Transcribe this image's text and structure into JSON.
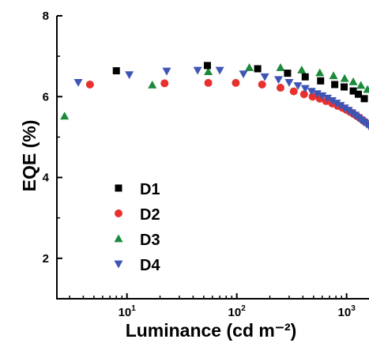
{
  "chart_data": {
    "type": "scatter",
    "title": "",
    "xlabel": "Luminance (cd m⁻²)",
    "ylabel": "EQE (%)",
    "xscale": "log",
    "xlim": [
      2.3,
      1600
    ],
    "ylim": [
      1,
      8
    ],
    "x_ticks": [
      {
        "value": 10,
        "label_base": "10",
        "label_exp": "1"
      },
      {
        "value": 100,
        "label_base": "10",
        "label_exp": "2"
      },
      {
        "value": 1000,
        "label_base": "10",
        "label_exp": "3"
      }
    ],
    "y_ticks": [
      {
        "value": 2,
        "label": "2"
      },
      {
        "value": 4,
        "label": "4"
      },
      {
        "value": 6,
        "label": "6"
      },
      {
        "value": 8,
        "label": "8"
      }
    ],
    "legend_position": "lower-left",
    "grid": false,
    "series": [
      {
        "name": "D1",
        "marker": "square",
        "color": "#000000",
        "points": [
          [
            8,
            6.64
          ],
          [
            54,
            6.77
          ],
          [
            155,
            6.69
          ],
          [
            290,
            6.58
          ],
          [
            420,
            6.49
          ],
          [
            580,
            6.39
          ],
          [
            780,
            6.3
          ],
          [
            950,
            6.24
          ],
          [
            1150,
            6.14
          ],
          [
            1280,
            6.06
          ],
          [
            1450,
            5.95
          ]
        ]
      },
      {
        "name": "D2",
        "marker": "circle",
        "color": "#e8312f",
        "points": [
          [
            4.6,
            6.3
          ],
          [
            22,
            6.33
          ],
          [
            55,
            6.34
          ],
          [
            98,
            6.34
          ],
          [
            170,
            6.3
          ],
          [
            250,
            6.22
          ],
          [
            330,
            6.13
          ],
          [
            410,
            6.06
          ],
          [
            490,
            6.0
          ],
          [
            570,
            5.95
          ],
          [
            650,
            5.89
          ],
          [
            740,
            5.83
          ],
          [
            830,
            5.77
          ],
          [
            920,
            5.72
          ],
          [
            1000,
            5.67
          ],
          [
            1080,
            5.62
          ],
          [
            1160,
            5.57
          ],
          [
            1240,
            5.52
          ],
          [
            1320,
            5.47
          ],
          [
            1400,
            5.42
          ],
          [
            1480,
            5.37
          ]
        ]
      },
      {
        "name": "D3",
        "marker": "triangle-up",
        "color": "#1b8a3a",
        "points": [
          [
            2.7,
            5.52
          ],
          [
            17,
            6.29
          ],
          [
            55,
            6.62
          ],
          [
            130,
            6.72
          ],
          [
            250,
            6.72
          ],
          [
            390,
            6.66
          ],
          [
            570,
            6.59
          ],
          [
            760,
            6.52
          ],
          [
            960,
            6.45
          ],
          [
            1150,
            6.37
          ],
          [
            1350,
            6.28
          ],
          [
            1550,
            6.18
          ]
        ]
      },
      {
        "name": "D4",
        "marker": "triangle-down",
        "color": "#3f55b4",
        "points": [
          [
            3.6,
            6.35
          ],
          [
            10.5,
            6.54
          ],
          [
            23,
            6.63
          ],
          [
            44,
            6.65
          ],
          [
            70,
            6.65
          ],
          [
            115,
            6.56
          ],
          [
            180,
            6.49
          ],
          [
            240,
            6.42
          ],
          [
            300,
            6.35
          ],
          [
            360,
            6.27
          ],
          [
            420,
            6.2
          ],
          [
            480,
            6.13
          ],
          [
            540,
            6.07
          ],
          [
            600,
            6.02
          ],
          [
            670,
            5.96
          ],
          [
            740,
            5.9
          ],
          [
            810,
            5.84
          ],
          [
            880,
            5.78
          ],
          [
            960,
            5.72
          ],
          [
            1040,
            5.66
          ],
          [
            1120,
            5.6
          ],
          [
            1200,
            5.54
          ],
          [
            1280,
            5.48
          ],
          [
            1360,
            5.42
          ],
          [
            1440,
            5.37
          ],
          [
            1520,
            5.32
          ],
          [
            1600,
            5.27
          ]
        ]
      }
    ]
  }
}
